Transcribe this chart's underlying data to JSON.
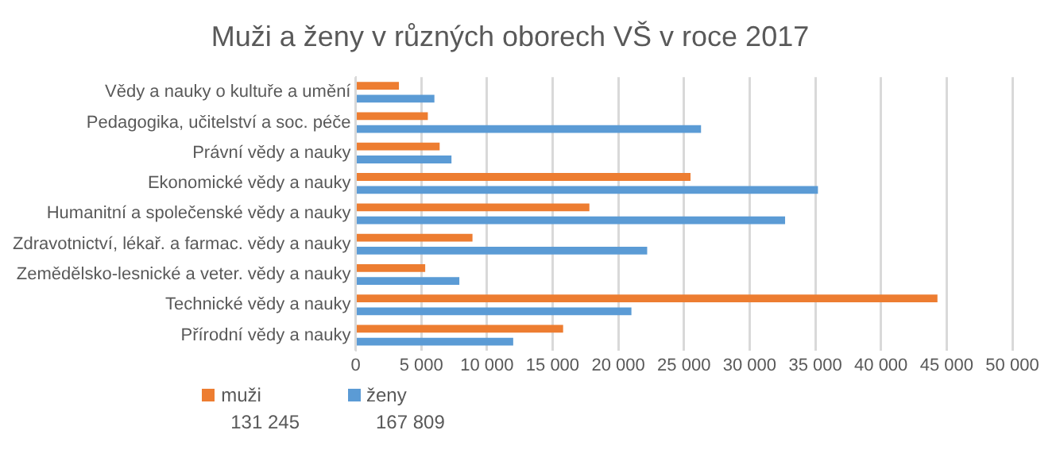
{
  "chart_data": {
    "type": "bar",
    "orientation": "horizontal",
    "title": "Muži a ženy v různých oborech VŠ v roce 2017",
    "categories": [
      "Vědy a nauky o kultuře a umění",
      "Pedagogika, učitelství a soc. péče",
      "Právní vědy a nauky",
      "Ekonomické vědy a nauky",
      "Humanitní a společenské vědy a nauky",
      "Zdravotnictví, lékař. a farmac. vědy a nauky",
      "Zemědělsko-lesnické a veter. vědy a nauky",
      "Technické vědy a nauky",
      "Přírodní vědy a nauky"
    ],
    "series": [
      {
        "name": "muži",
        "color": "#ed7d31",
        "values": [
          3300,
          5500,
          6400,
          25500,
          17800,
          8900,
          5300,
          44300,
          15800
        ]
      },
      {
        "name": "ženy",
        "color": "#5b9bd5",
        "values": [
          6000,
          26300,
          7300,
          35200,
          32700,
          22200,
          7900,
          21000,
          12000
        ]
      }
    ],
    "xlim": [
      0,
      50000
    ],
    "xticks": [
      {
        "value": 0,
        "label": "0"
      },
      {
        "value": 5000,
        "label": "5 000"
      },
      {
        "value": 10000,
        "label": "10 000"
      },
      {
        "value": 15000,
        "label": "15 000"
      },
      {
        "value": 20000,
        "label": "20 000"
      },
      {
        "value": 25000,
        "label": "25 000"
      },
      {
        "value": 30000,
        "label": "30 000"
      },
      {
        "value": 35000,
        "label": "35 000"
      },
      {
        "value": 40000,
        "label": "40 000"
      },
      {
        "value": 45000,
        "label": "45 000"
      },
      {
        "value": 50000,
        "label": "50 000"
      }
    ],
    "grid": "x",
    "legend": "bottom",
    "annotations": [
      "131 245",
      "167 809"
    ]
  }
}
